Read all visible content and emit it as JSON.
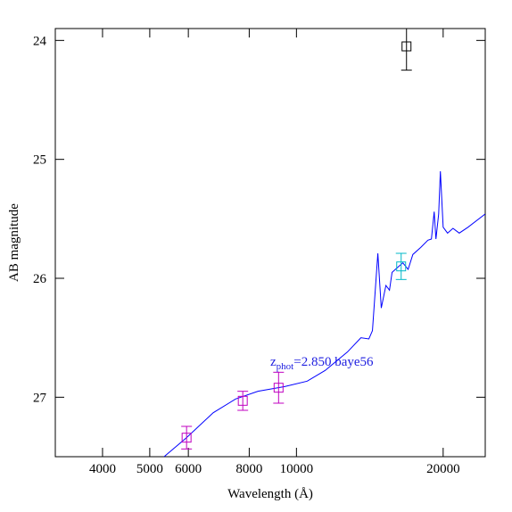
{
  "chart_data": {
    "type": "sed",
    "xlabel": "Wavelength (Å)",
    "ylabel": "AB magnitude",
    "xscale": "log",
    "xlim": [
      3200,
      24400
    ],
    "xticks": [
      4000,
      5000,
      6000,
      8000,
      10000,
      20000
    ],
    "ylim": [
      27.5,
      23.9
    ],
    "yticks": [
      24,
      25,
      26,
      27
    ],
    "annotation": [
      "z",
      "phot",
      "=2.850 baye56"
    ],
    "annotation_color": "#2020e0",
    "spectrum": {
      "color": "#0000ff",
      "x": [
        5350,
        5950,
        6750,
        7500,
        8340,
        9460,
        10520,
        11450,
        12720,
        13560,
        14080,
        14320,
        14690,
        14930,
        15260,
        15520,
        15710,
        16110,
        16530,
        16950,
        17330,
        17990,
        18610,
        18920,
        19170,
        19330,
        19580,
        19740,
        20000,
        20420,
        20950,
        21580,
        22500,
        24380
      ],
      "y": [
        27.5,
        27.34,
        27.13,
        27.015,
        26.95,
        26.91,
        26.865,
        26.775,
        26.62,
        26.5,
        26.51,
        26.44,
        25.79,
        26.25,
        26.06,
        26.1,
        25.95,
        25.91,
        25.87,
        25.925,
        25.8,
        25.74,
        25.68,
        25.67,
        25.44,
        25.67,
        25.46,
        25.1,
        25.57,
        25.62,
        25.58,
        25.62,
        25.57,
        25.46
      ]
    },
    "points": [
      {
        "x": 5950,
        "y": 27.34,
        "err": 0.095,
        "color": "#c000c0"
      },
      {
        "x": 7760,
        "y": 27.03,
        "err": 0.08,
        "color": "#c000c0"
      },
      {
        "x": 9190,
        "y": 26.92,
        "err": 0.13,
        "color": "#c000c0"
      },
      {
        "x": 16400,
        "y": 25.9,
        "err": 0.11,
        "color": "#00b8c8"
      },
      {
        "x": 16820,
        "y": 24.05,
        "err": 0.2,
        "color": "#000000"
      }
    ]
  }
}
